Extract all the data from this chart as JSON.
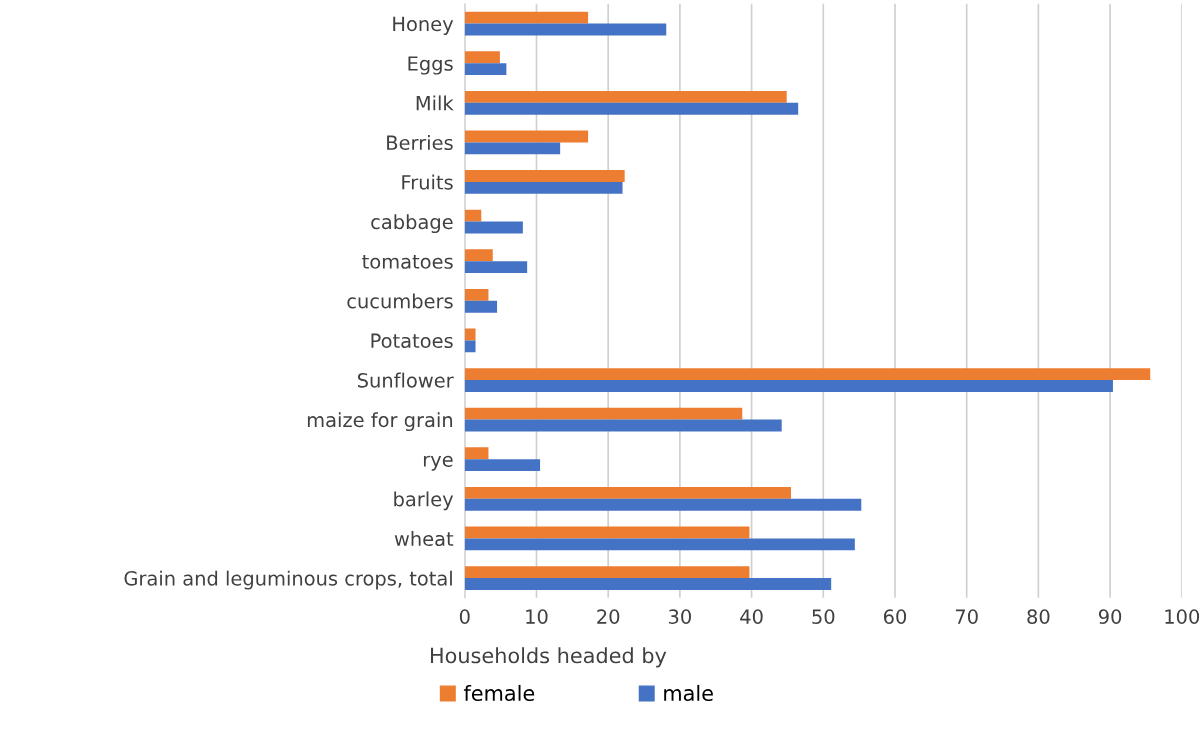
{
  "chart_data": {
    "type": "bar",
    "orientation": "horizontal",
    "xlabel": "Households headed by",
    "categories": [
      "Honey",
      "Eggs",
      "Milk",
      "Berries",
      "Fruits",
      "cabbage",
      "tomatoes",
      "cucumbers",
      "Potatoes",
      "Sunflower",
      "maize for grain",
      "rye",
      "barley",
      "wheat",
      "Grain and leguminous crops, total"
    ],
    "series": [
      {
        "name": "female",
        "color": "#ed7d31",
        "values": [
          17.2,
          4.9,
          44.9,
          17.2,
          22.3,
          2.3,
          3.9,
          3.3,
          1.5,
          95.6,
          38.7,
          3.3,
          45.5,
          39.7,
          39.7
        ]
      },
      {
        "name": "male",
        "color": "#4472c4",
        "values": [
          28.1,
          5.8,
          46.5,
          13.3,
          22.0,
          8.1,
          8.7,
          4.5,
          1.5,
          90.4,
          44.2,
          10.5,
          55.3,
          54.4,
          51.1
        ]
      }
    ],
    "xlim": [
      0,
      100
    ],
    "xticks": [
      0,
      10,
      20,
      30,
      40,
      50,
      60,
      70,
      80,
      90,
      100
    ],
    "grid": "x",
    "legend": "bottom"
  }
}
